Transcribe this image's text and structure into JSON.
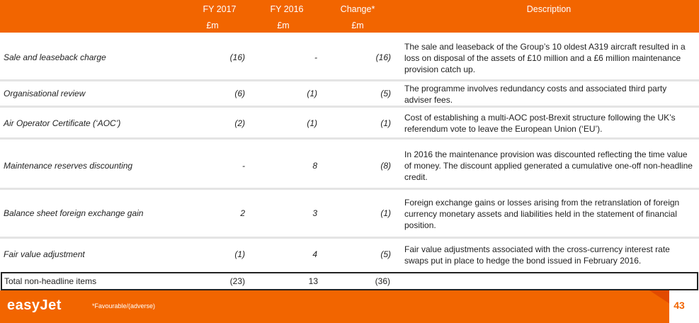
{
  "header": {
    "col_fy2017": "FY 2017",
    "col_fy2016": "FY 2016",
    "col_change": "Change*",
    "col_description": "Description",
    "unit_fy2017": "£m",
    "unit_fy2016": "£m",
    "unit_change": "£m"
  },
  "rows": [
    {
      "label": "Sale and leaseback charge",
      "fy2017": "(16)",
      "fy2016": "-",
      "change": "(16)",
      "description": "The sale and leaseback of the Group’s 10 oldest A319 aircraft resulted in a loss on disposal of the assets of £10 million and a £6 million maintenance provision catch up."
    },
    {
      "label": "Organisational review",
      "fy2017": "(6)",
      "fy2016": "(1)",
      "change": "(5)",
      "description": "The programme involves redundancy costs and associated third party adviser fees."
    },
    {
      "label": "Air Operator Certificate (‘AOC’)",
      "fy2017": "(2)",
      "fy2016": "(1)",
      "change": "(1)",
      "description": "Cost of establishing a multi-AOC post-Brexit structure following the UK’s referendum vote to leave the European Union (‘EU’)."
    },
    {
      "label": "Maintenance reserves discounting",
      "fy2017": "-",
      "fy2016": "8",
      "change": "(8)",
      "description": "In 2016 the maintenance provision was discounted reflecting the time value of money. The discount applied generated a cumulative one-off non-headline credit."
    },
    {
      "label": "Balance sheet foreign exchange gain",
      "fy2017": "2",
      "fy2016": "3",
      "change": "(1)",
      "description": "Foreign exchange gains or losses arising from the retranslation of foreign currency monetary assets and liabilities held in the statement of financial position."
    },
    {
      "label": "Fair value adjustment",
      "fy2017": "(1)",
      "fy2016": "4",
      "change": "(5)",
      "description": "Fair value adjustments associated with the cross-currency interest rate swaps put in place to hedge the bond issued in February 2016."
    }
  ],
  "total": {
    "label": "Total non-headline items",
    "fy2017": "(23)",
    "fy2016": "13",
    "change": "(36)"
  },
  "footer": {
    "logo": "easyJet",
    "note": "*Favourable/(adverse)",
    "page": "43"
  },
  "colors": {
    "brand_orange": "#f26500",
    "separator": "#e4e4e4"
  }
}
